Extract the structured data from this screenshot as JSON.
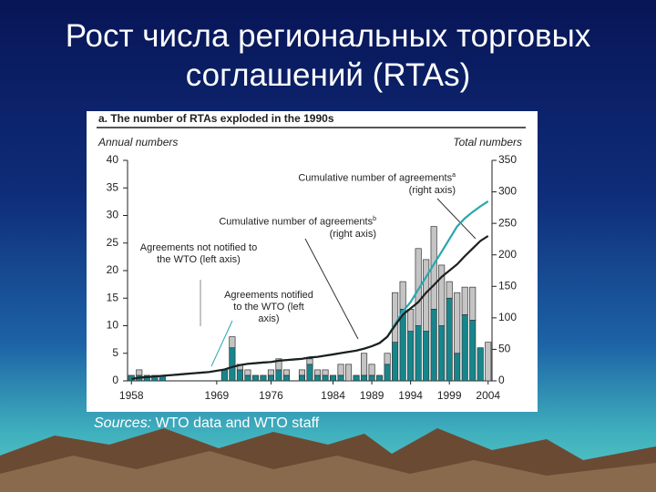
{
  "slide_title": "Рост числа региональных торговых соглашений (RTAs)",
  "sources": {
    "label": "Sources:",
    "text": "WTO data and WTO staff"
  },
  "chart_data": {
    "type": "stacked-bar-line",
    "title": "a. The number of RTAs exploded in the 1990s",
    "y_label": "Annual numbers",
    "y2_label": "Total numbers",
    "x": [
      1958,
      1959,
      1960,
      1961,
      1962,
      1963,
      1964,
      1965,
      1966,
      1967,
      1968,
      1969,
      1970,
      1971,
      1972,
      1973,
      1974,
      1975,
      1976,
      1977,
      1978,
      1979,
      1980,
      1981,
      1982,
      1983,
      1984,
      1985,
      1986,
      1987,
      1988,
      1989,
      1990,
      1991,
      1992,
      1993,
      1994,
      1995,
      1996,
      1997,
      1998,
      1999,
      2000,
      2001,
      2002,
      2003,
      2004
    ],
    "xlim": [
      1957.5,
      2004.5
    ],
    "xticks": [
      1958,
      1969,
      1976,
      1984,
      1989,
      1994,
      1999,
      2004
    ],
    "ylim": [
      0,
      40
    ],
    "yticks": [
      0,
      5,
      10,
      15,
      20,
      25,
      30,
      35,
      40
    ],
    "y2lim": [
      0,
      350
    ],
    "y2ticks": [
      0,
      50,
      100,
      150,
      200,
      250,
      300,
      350
    ],
    "series": [
      {
        "name": "Agreements notified to the WTO (left axis)",
        "kind": "bar",
        "color": "#17868c",
        "values": [
          1,
          1,
          1,
          1,
          1,
          0,
          0,
          0,
          0,
          0,
          0,
          0,
          2,
          6,
          2,
          1,
          1,
          1,
          1,
          2,
          1,
          0,
          1,
          3,
          1,
          1,
          1,
          1,
          0,
          1,
          1,
          1,
          1,
          3,
          7,
          13,
          9,
          10,
          9,
          13,
          10,
          15,
          5,
          12,
          11,
          6,
          0
        ]
      },
      {
        "name": "Agreements not notified to the WTO (left axis)",
        "kind": "bar",
        "color": "#c4c4c4",
        "values": [
          0,
          1,
          0,
          0,
          0,
          0,
          0,
          0,
          0,
          0,
          0,
          0,
          0,
          2,
          1,
          1,
          0,
          0,
          1,
          2,
          1,
          0,
          1,
          1,
          1,
          1,
          0,
          2,
          3,
          0,
          4,
          2,
          0,
          2,
          9,
          5,
          4,
          14,
          13,
          15,
          11,
          3,
          11,
          5,
          6,
          0,
          7
        ]
      },
      {
        "name": "Cumulative number of agreements",
        "note": "a",
        "axis_note": "(right axis)",
        "kind": "line",
        "axis": "y2",
        "color": "#2aa6ad",
        "values": [
          3,
          5,
          6,
          7,
          8,
          9,
          10,
          11,
          12,
          13,
          14,
          16,
          18,
          22,
          25,
          27,
          28,
          29,
          30,
          32,
          33,
          34,
          35,
          37,
          38,
          40,
          42,
          44,
          46,
          48,
          51,
          55,
          60,
          70,
          90,
          110,
          125,
          145,
          165,
          185,
          205,
          225,
          245,
          258,
          268,
          277,
          285
        ]
      },
      {
        "name": "Cumulative number of agreements",
        "note": "b",
        "axis_note": "(right axis)",
        "kind": "line",
        "axis": "y2",
        "color": "#1e1e1e",
        "values": [
          3,
          5,
          6,
          7,
          8,
          9,
          10,
          11,
          12,
          13,
          14,
          16,
          18,
          22,
          25,
          27,
          28,
          29,
          30,
          32,
          33,
          34,
          35,
          37,
          38,
          40,
          42,
          44,
          46,
          48,
          51,
          55,
          60,
          70,
          88,
          105,
          115,
          125,
          140,
          152,
          165,
          175,
          185,
          198,
          210,
          222,
          230
        ]
      }
    ]
  }
}
